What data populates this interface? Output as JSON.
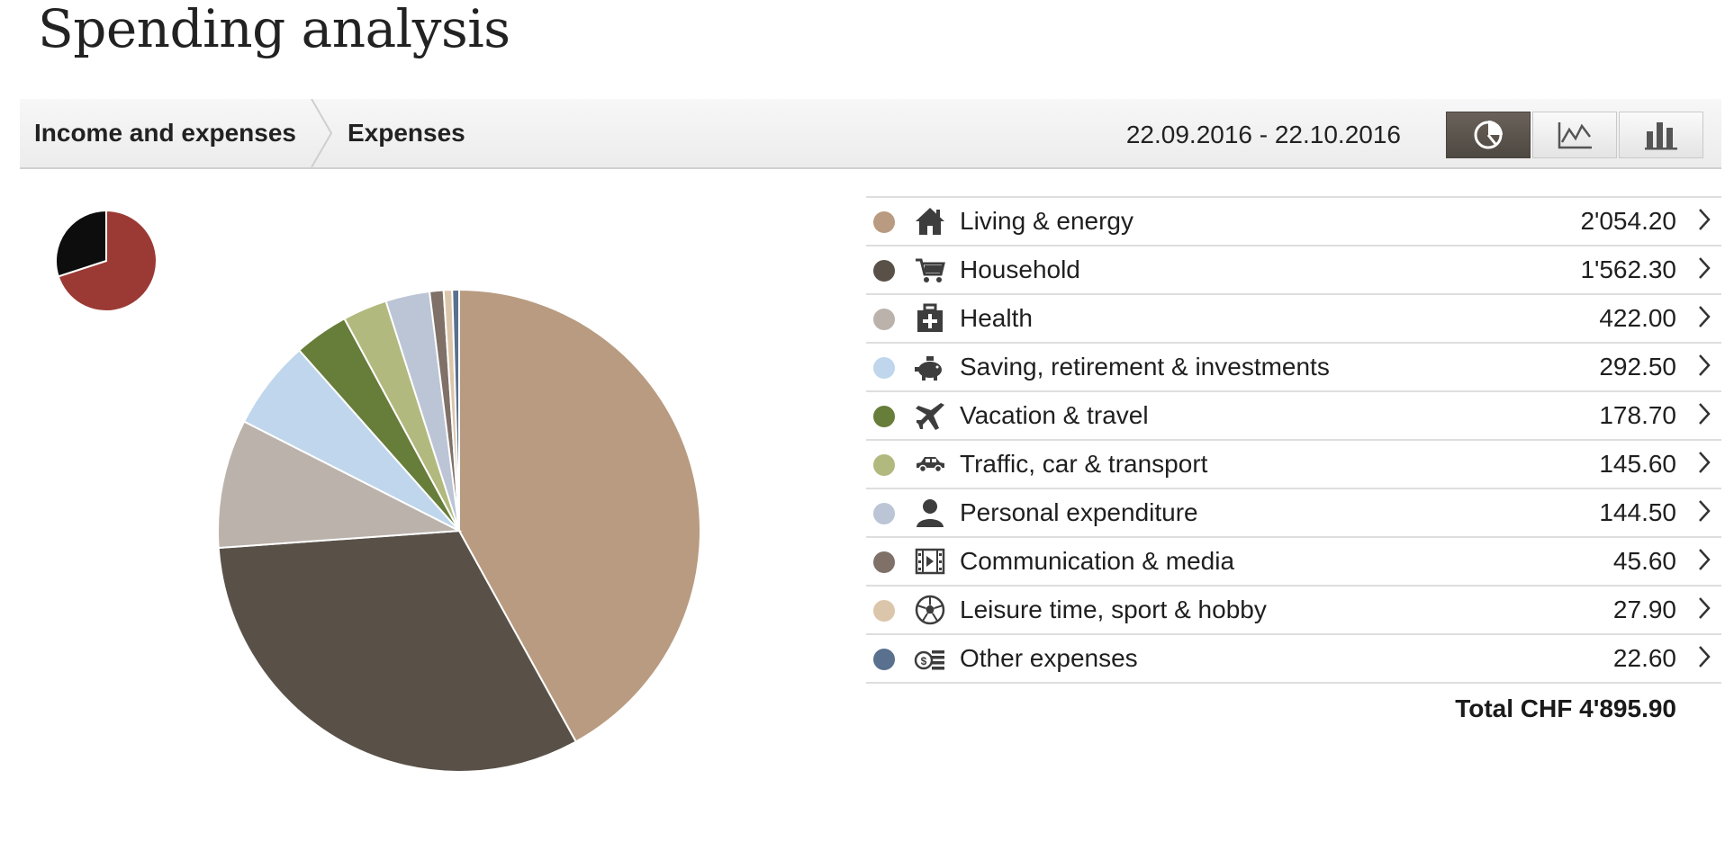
{
  "page": {
    "title": "Spending analysis"
  },
  "breadcrumb": {
    "items": [
      "Income and expenses",
      "Expenses"
    ]
  },
  "period": {
    "date_range": "22.09.2016 - 22.10.2016"
  },
  "view_switcher": {
    "buttons": [
      {
        "icon": "pie-chart-icon",
        "active": true
      },
      {
        "icon": "line-chart-icon",
        "active": false
      },
      {
        "icon": "bar-chart-icon",
        "active": false
      }
    ]
  },
  "mini_pie": {
    "slices": [
      {
        "value": 70,
        "color": "#9b3a34"
      },
      {
        "value": 30,
        "color": "#0d0d0d"
      }
    ]
  },
  "categories": [
    {
      "label": "Living & energy",
      "amount": "2'054.20",
      "color": "#b89b80",
      "icon": "house-icon"
    },
    {
      "label": "Household",
      "amount": "1'562.30",
      "color": "#595148",
      "icon": "shopping-cart-icon"
    },
    {
      "label": "Health",
      "amount": "422.00",
      "color": "#bbb2ab",
      "icon": "first-aid-kit-icon"
    },
    {
      "label": "Saving, retirement & investments",
      "amount": "292.50",
      "color": "#bfd6ec",
      "icon": "piggy-bank-icon"
    },
    {
      "label": "Vacation & travel",
      "amount": "178.70",
      "color": "#677d3a",
      "icon": "airplane-icon"
    },
    {
      "label": "Traffic, car & transport",
      "amount": "145.60",
      "color": "#b2b97e",
      "icon": "car-icon"
    },
    {
      "label": "Personal expenditure",
      "amount": "144.50",
      "color": "#bbc5d6",
      "icon": "person-icon"
    },
    {
      "label": "Communication & media",
      "amount": "45.60",
      "color": "#7f7068",
      "icon": "film-strip-icon"
    },
    {
      "label": "Leisure time, sport & hobby",
      "amount": "27.90",
      "color": "#dcc6ab",
      "icon": "soccer-ball-icon"
    },
    {
      "label": "Other expenses",
      "amount": "22.60",
      "color": "#59708e",
      "icon": "coins-icon"
    }
  ],
  "total": {
    "label": "Total CHF 4'895.90"
  },
  "chart_data": {
    "type": "pie",
    "categories": [
      "Living & energy",
      "Household",
      "Health",
      "Saving, retirement & investments",
      "Vacation & travel",
      "Traffic, car & transport",
      "Personal expenditure",
      "Communication & media",
      "Leisure time, sport & hobby",
      "Other expenses"
    ],
    "values": [
      2054.2,
      1562.3,
      422.0,
      292.5,
      178.7,
      145.6,
      144.5,
      45.6,
      27.9,
      22.6
    ],
    "colors": [
      "#b89b80",
      "#595148",
      "#bbb2ab",
      "#bfd6ec",
      "#677d3a",
      "#b2b97e",
      "#bbc5d6",
      "#7f7068",
      "#dcc6ab",
      "#59708e"
    ],
    "title": "",
    "start": "12 o'clock",
    "direction": "clockwise"
  }
}
